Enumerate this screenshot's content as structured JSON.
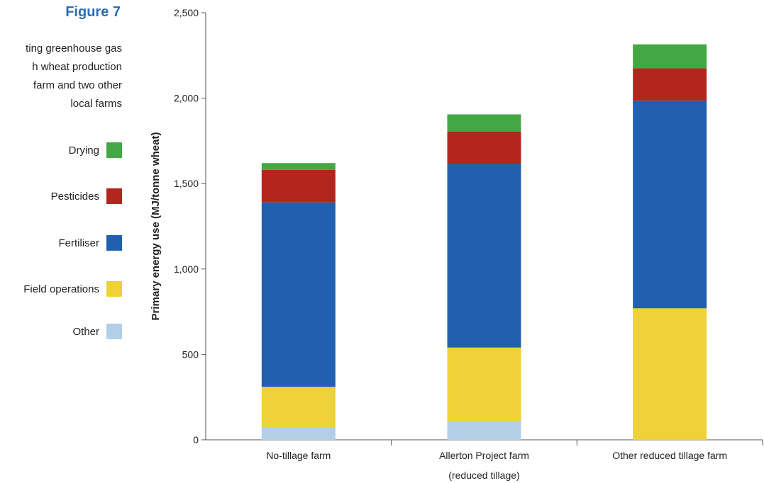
{
  "figure_label": "Figure 7",
  "caption_lines": [
    "ting greenhouse gas",
    "h wheat production",
    "farm and two other",
    "local farms"
  ],
  "legend": [
    {
      "label": "Drying",
      "color": "#43a843"
    },
    {
      "label": "Pesticides",
      "color": "#b3261e"
    },
    {
      "label": "Fertiliser",
      "color": "#2160b0"
    },
    {
      "label": "Field operations",
      "color": "#eed237"
    },
    {
      "label": "Other",
      "color": "#b3cfe8"
    }
  ],
  "chart_data": {
    "type": "bar",
    "stacked": true,
    "title": "",
    "xlabel": "",
    "ylabel": "Primary energy use (MJ/tonne wheat)",
    "ylim": [
      0,
      2500
    ],
    "yticks": [
      0,
      500,
      1000,
      1500,
      2000,
      2500
    ],
    "ytick_labels": [
      "0",
      "500",
      "1,000",
      "1,500",
      "2,000",
      "2,500"
    ],
    "categories": [
      [
        "No-tillage farm"
      ],
      [
        "Allerton Project farm",
        "(reduced tillage)"
      ],
      [
        "Other reduced tillage farm"
      ]
    ],
    "series": [
      {
        "name": "Other",
        "color": "#b3cfe8",
        "values": [
          75,
          110,
          0
        ]
      },
      {
        "name": "Field operations",
        "color": "#eed237",
        "values": [
          235,
          430,
          770
        ]
      },
      {
        "name": "Fertiliser",
        "color": "#2160b0",
        "values": [
          1080,
          1075,
          1215
        ]
      },
      {
        "name": "Pesticides",
        "color": "#b3261e",
        "values": [
          190,
          190,
          190
        ]
      },
      {
        "name": "Drying",
        "color": "#43a843",
        "values": [
          40,
          100,
          140
        ]
      }
    ],
    "grid": false,
    "legend_position": "left"
  }
}
